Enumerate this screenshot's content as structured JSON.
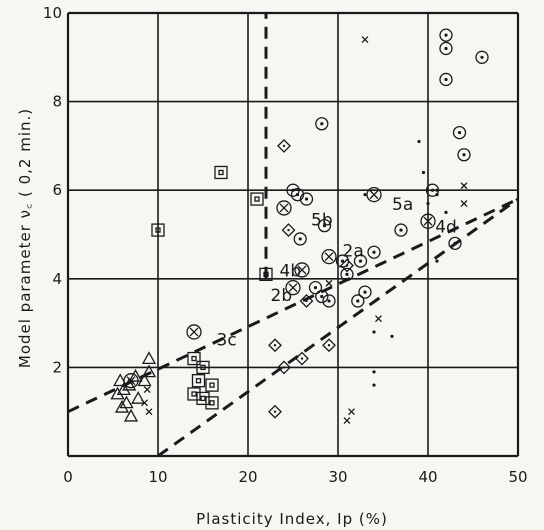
{
  "chart_data": {
    "type": "scatter",
    "xlabel": "Plasticity  Index,  Ip (%)",
    "ylabel": "Model  parameter  ν꜀ ( 0,2 min.)",
    "xlim": [
      0,
      50
    ],
    "ylim": [
      0,
      10
    ],
    "x_ticks": [
      "0",
      "10",
      "20",
      "30",
      "40",
      "50"
    ],
    "y_ticks": [
      "2",
      "4",
      "6",
      "8",
      "10"
    ],
    "grid": true,
    "markers": {
      "triangle": [
        [
          5.5,
          1.4
        ],
        [
          6,
          1.1
        ],
        [
          6.2,
          1.5
        ],
        [
          6.5,
          1.2
        ],
        [
          7,
          0.9
        ],
        [
          7.5,
          1.8
        ],
        [
          8.5,
          1.7
        ],
        [
          9,
          1.9
        ],
        [
          9,
          2.2
        ],
        [
          5.8,
          1.7
        ],
        [
          7.8,
          1.3
        ],
        [
          6.8,
          1.6
        ]
      ],
      "circled_dot": [
        [
          28.2,
          7.5
        ],
        [
          25,
          6
        ],
        [
          25.5,
          5.9
        ],
        [
          37,
          5.1
        ],
        [
          32.5,
          4.4
        ],
        [
          40.5,
          6
        ],
        [
          43.5,
          7.3
        ],
        [
          44,
          6.8
        ],
        [
          42,
          8.5
        ],
        [
          46,
          9
        ],
        [
          42,
          9.5
        ],
        [
          42,
          9.2
        ],
        [
          29,
          3.5
        ],
        [
          32.2,
          3.5
        ],
        [
          34,
          4.6
        ],
        [
          33,
          3.7
        ],
        [
          31,
          4.1
        ],
        [
          28.2,
          3.6
        ],
        [
          30.5,
          4.4
        ],
        [
          26.5,
          5.8
        ],
        [
          28.5,
          5.2
        ],
        [
          43,
          4.8
        ],
        [
          25.8,
          4.9
        ],
        [
          27.5,
          3.8
        ]
      ],
      "circled_x": [
        [
          7,
          1.7
        ],
        [
          14,
          2.8
        ],
        [
          24,
          5.6
        ],
        [
          26,
          4.2
        ],
        [
          29,
          4.5
        ],
        [
          34,
          5.9
        ],
        [
          40,
          5.3
        ],
        [
          25,
          3.8
        ]
      ],
      "diamond": [
        [
          24,
          7
        ],
        [
          26.5,
          3.5
        ],
        [
          23,
          2.5
        ],
        [
          24,
          2
        ],
        [
          26,
          2.2
        ],
        [
          29,
          2.5
        ],
        [
          23,
          1
        ],
        [
          24.5,
          5.1
        ],
        [
          31,
          4.3
        ]
      ],
      "square": [
        [
          17,
          6.4
        ],
        [
          10,
          5.1
        ],
        [
          21,
          5.8
        ],
        [
          14,
          2.2
        ],
        [
          15,
          2
        ],
        [
          14.5,
          1.7
        ],
        [
          14,
          1.4
        ],
        [
          15,
          1.3
        ],
        [
          16,
          1.6
        ],
        [
          16,
          1.2
        ],
        [
          22,
          4.1
        ]
      ],
      "x": [
        [
          33,
          9.4
        ],
        [
          29,
          3.9
        ],
        [
          44,
          5.7
        ],
        [
          34.5,
          3.1
        ],
        [
          31,
          0.8
        ],
        [
          31.5,
          1
        ],
        [
          8.5,
          1.2
        ],
        [
          9,
          1
        ],
        [
          8.8,
          1.5
        ],
        [
          44,
          6.1
        ]
      ],
      "dot": [
        [
          39,
          7.1
        ],
        [
          40,
          5.7
        ],
        [
          42,
          5.5
        ],
        [
          41,
          4.4
        ],
        [
          34,
          2.8
        ],
        [
          34,
          1.9
        ],
        [
          34,
          1.6
        ],
        [
          36,
          2.7
        ],
        [
          33,
          5.9
        ],
        [
          41,
          6
        ],
        [
          39.5,
          6.4
        ],
        [
          41,
          5.9
        ]
      ]
    },
    "lines": [
      {
        "style": "dashed",
        "points": [
          [
            0,
            1
          ],
          [
            50,
            5.8
          ]
        ]
      },
      {
        "style": "dashed",
        "points": [
          [
            10,
            0
          ],
          [
            50,
            5.8
          ]
        ]
      },
      {
        "style": "dashed",
        "points": [
          [
            22,
            4
          ],
          [
            22,
            10
          ]
        ]
      }
    ],
    "annotations": [
      {
        "text": "5a",
        "x": 36,
        "y": 5.55
      },
      {
        "text": "5b",
        "x": 27,
        "y": 5.2
      },
      {
        "text": "2a",
        "x": 30.5,
        "y": 4.5
      },
      {
        "text": "4b",
        "x": 23.5,
        "y": 4.05
      },
      {
        "text": "4d",
        "x": 40.8,
        "y": 5.05
      },
      {
        "text": "2b",
        "x": 22.5,
        "y": 3.5
      },
      {
        "text": "3c",
        "x": 16.5,
        "y": 2.5
      }
    ]
  }
}
